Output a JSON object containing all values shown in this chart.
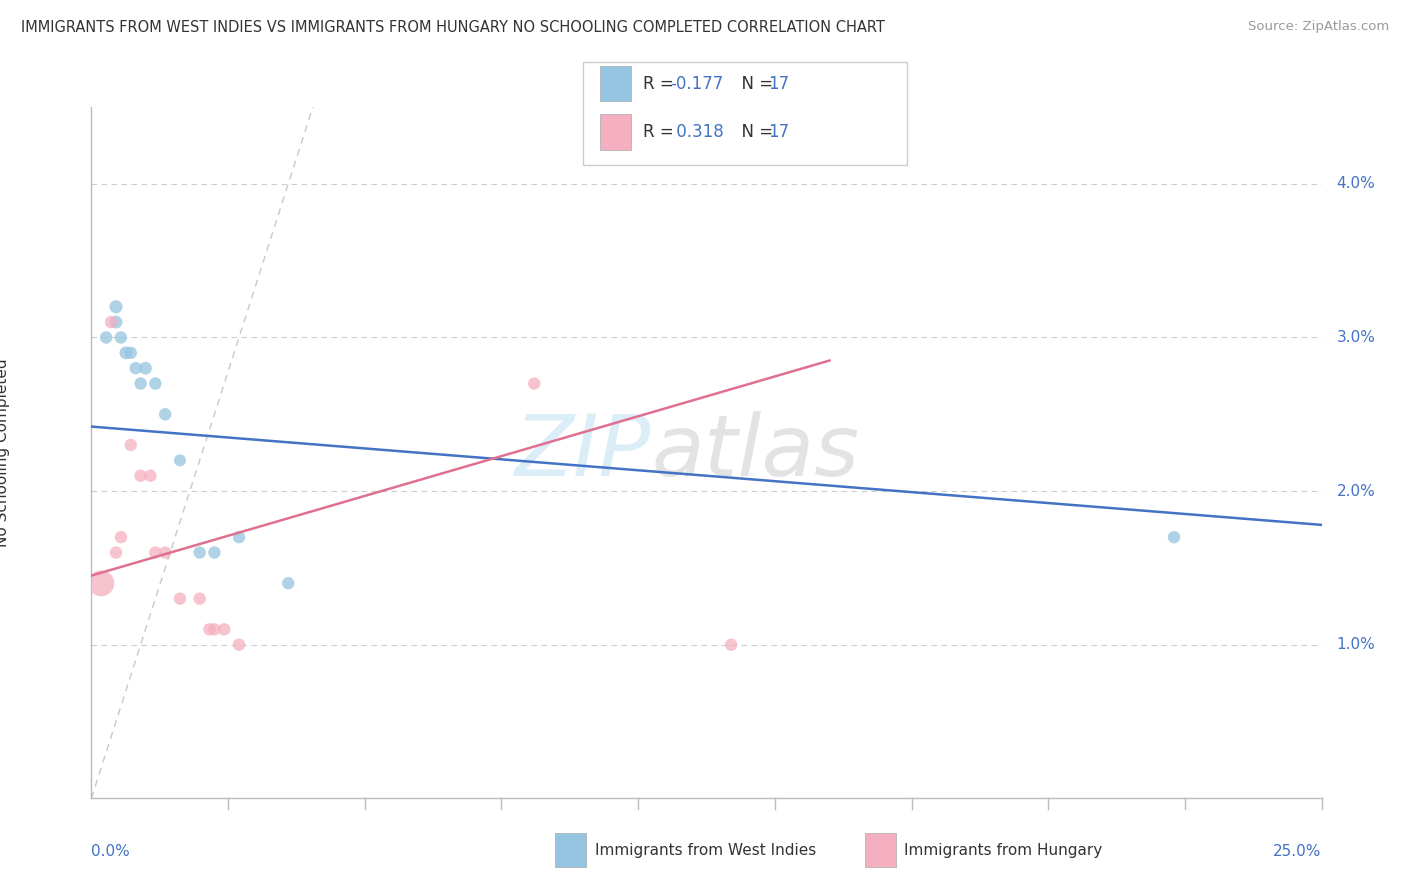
{
  "title": "IMMIGRANTS FROM WEST INDIES VS IMMIGRANTS FROM HUNGARY NO SCHOOLING COMPLETED CORRELATION CHART",
  "source": "Source: ZipAtlas.com",
  "ylabel": "No Schooling Completed",
  "xmin": 0.0,
  "xmax": 0.25,
  "ymin": 0.0,
  "ymax": 0.045,
  "yticks": [
    0.01,
    0.02,
    0.03,
    0.04
  ],
  "ytick_labels": [
    "1.0%",
    "2.0%",
    "3.0%",
    "4.0%"
  ],
  "grid_color": "#cccccc",
  "bg_color": "#ffffff",
  "blue_dot_color": "#94c4e0",
  "pink_dot_color": "#f4afc0",
  "blue_line_color": "#4472c4",
  "pink_line_color": "#e07090",
  "diag_color": "#c8c8c8",
  "axis_color": "#bbbbbb",
  "label_color": "#4472c4",
  "text_color": "#333333",
  "source_color": "#999999",
  "watermark_zip_color": "#cce6f5",
  "watermark_atlas_color": "#d8d8d8",
  "wi_x": [
    0.003,
    0.005,
    0.005,
    0.006,
    0.007,
    0.008,
    0.009,
    0.01,
    0.011,
    0.013,
    0.015,
    0.018,
    0.022,
    0.025,
    0.03,
    0.04,
    0.22
  ],
  "wi_y": [
    0.03,
    0.032,
    0.031,
    0.03,
    0.029,
    0.029,
    0.028,
    0.027,
    0.028,
    0.027,
    0.025,
    0.022,
    0.016,
    0.016,
    0.017,
    0.014,
    0.017
  ],
  "wi_sizes": [
    80,
    90,
    85,
    80,
    85,
    80,
    80,
    80,
    85,
    80,
    80,
    75,
    80,
    80,
    80,
    80,
    80
  ],
  "hu_x": [
    0.002,
    0.004,
    0.005,
    0.006,
    0.008,
    0.01,
    0.012,
    0.013,
    0.015,
    0.018,
    0.022,
    0.024,
    0.025,
    0.027,
    0.03,
    0.09,
    0.13
  ],
  "hu_y": [
    0.014,
    0.031,
    0.016,
    0.017,
    0.023,
    0.021,
    0.021,
    0.016,
    0.016,
    0.013,
    0.013,
    0.011,
    0.011,
    0.011,
    0.01,
    0.027,
    0.01
  ],
  "hu_sizes": [
    350,
    80,
    80,
    80,
    80,
    80,
    80,
    80,
    80,
    80,
    80,
    80,
    80,
    80,
    80,
    80,
    80
  ],
  "blue_line_x0": 0.0,
  "blue_line_x1": 0.25,
  "blue_line_y0": 0.0242,
  "blue_line_y1": 0.0178,
  "pink_line_x0": 0.0,
  "pink_line_x1": 0.15,
  "pink_line_y0": 0.0145,
  "pink_line_y1": 0.0285
}
